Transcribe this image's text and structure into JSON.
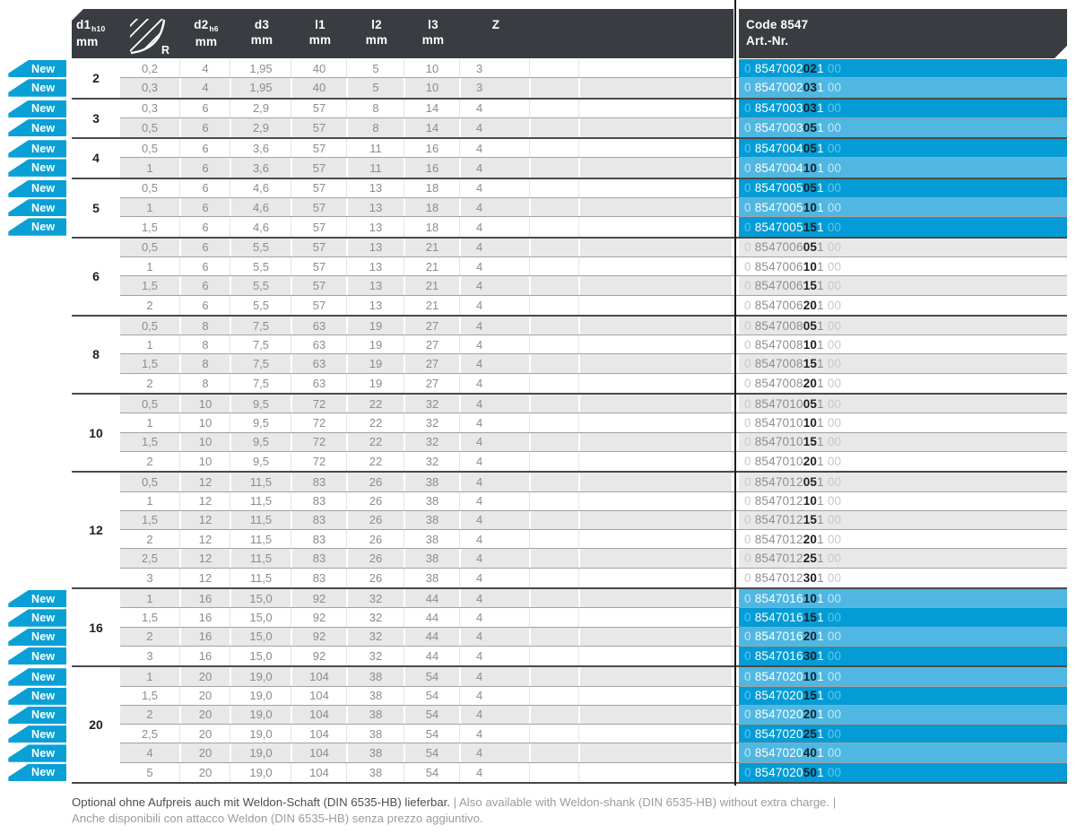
{
  "table": {
    "badge_label": "New",
    "header": {
      "columns": [
        {
          "id": "d1",
          "label": "d1",
          "sub": "h10",
          "unit": "mm"
        },
        {
          "id": "r",
          "label": "R",
          "icon": "corner-radius-icon"
        },
        {
          "id": "d2",
          "label": "d2",
          "sub": "h6",
          "unit": "mm"
        },
        {
          "id": "d3",
          "label": "d3",
          "unit": "mm"
        },
        {
          "id": "l1",
          "label": "l1",
          "unit": "mm"
        },
        {
          "id": "l2",
          "label": "l2",
          "unit": "mm"
        },
        {
          "id": "l3",
          "label": "l3",
          "unit": "mm"
        },
        {
          "id": "z",
          "label": "Z"
        }
      ],
      "code_title": "Code 8547",
      "code_subtitle": "Art.-Nr."
    },
    "groups": [
      {
        "d1": "2",
        "new": true,
        "rows": [
          {
            "r": "0,2",
            "d2": "4",
            "d3": "1,95",
            "l1": "40",
            "l2": "5",
            "l3": "10",
            "z": "3",
            "code": [
              "0",
              "8547002",
              "02",
              "1",
              "00"
            ]
          },
          {
            "r": "0,3",
            "d2": "4",
            "d3": "1,95",
            "l1": "40",
            "l2": "5",
            "l3": "10",
            "z": "3",
            "code": [
              "0",
              "8547002",
              "03",
              "1",
              "00"
            ]
          }
        ]
      },
      {
        "d1": "3",
        "new": true,
        "rows": [
          {
            "r": "0,3",
            "d2": "6",
            "d3": "2,9",
            "l1": "57",
            "l2": "8",
            "l3": "14",
            "z": "4",
            "code": [
              "0",
              "8547003",
              "03",
              "1",
              "00"
            ]
          },
          {
            "r": "0,5",
            "d2": "6",
            "d3": "2,9",
            "l1": "57",
            "l2": "8",
            "l3": "14",
            "z": "4",
            "code": [
              "0",
              "8547003",
              "05",
              "1",
              "00"
            ]
          }
        ]
      },
      {
        "d1": "4",
        "new": true,
        "rows": [
          {
            "r": "0,5",
            "d2": "6",
            "d3": "3,6",
            "l1": "57",
            "l2": "11",
            "l3": "16",
            "z": "4",
            "code": [
              "0",
              "8547004",
              "05",
              "1",
              "00"
            ]
          },
          {
            "r": "1",
            "d2": "6",
            "d3": "3,6",
            "l1": "57",
            "l2": "11",
            "l3": "16",
            "z": "4",
            "code": [
              "0",
              "8547004",
              "10",
              "1",
              "00"
            ]
          }
        ]
      },
      {
        "d1": "5",
        "new": true,
        "rows": [
          {
            "r": "0,5",
            "d2": "6",
            "d3": "4,6",
            "l1": "57",
            "l2": "13",
            "l3": "18",
            "z": "4",
            "code": [
              "0",
              "8547005",
              "05",
              "1",
              "00"
            ]
          },
          {
            "r": "1",
            "d2": "6",
            "d3": "4,6",
            "l1": "57",
            "l2": "13",
            "l3": "18",
            "z": "4",
            "code": [
              "0",
              "8547005",
              "10",
              "1",
              "00"
            ]
          },
          {
            "r": "1,5",
            "d2": "6",
            "d3": "4,6",
            "l1": "57",
            "l2": "13",
            "l3": "18",
            "z": "4",
            "code": [
              "0",
              "8547005",
              "15",
              "1",
              "00"
            ]
          }
        ]
      },
      {
        "d1": "6",
        "new": false,
        "rows": [
          {
            "r": "0,5",
            "d2": "6",
            "d3": "5,5",
            "l1": "57",
            "l2": "13",
            "l3": "21",
            "z": "4",
            "code": [
              "0",
              "8547006",
              "05",
              "1",
              "00"
            ]
          },
          {
            "r": "1",
            "d2": "6",
            "d3": "5,5",
            "l1": "57",
            "l2": "13",
            "l3": "21",
            "z": "4",
            "code": [
              "0",
              "8547006",
              "10",
              "1",
              "00"
            ]
          },
          {
            "r": "1,5",
            "d2": "6",
            "d3": "5,5",
            "l1": "57",
            "l2": "13",
            "l3": "21",
            "z": "4",
            "code": [
              "0",
              "8547006",
              "15",
              "1",
              "00"
            ]
          },
          {
            "r": "2",
            "d2": "6",
            "d3": "5,5",
            "l1": "57",
            "l2": "13",
            "l3": "21",
            "z": "4",
            "code": [
              "0",
              "8547006",
              "20",
              "1",
              "00"
            ]
          }
        ]
      },
      {
        "d1": "8",
        "new": false,
        "rows": [
          {
            "r": "0,5",
            "d2": "8",
            "d3": "7,5",
            "l1": "63",
            "l2": "19",
            "l3": "27",
            "z": "4",
            "code": [
              "0",
              "8547008",
              "05",
              "1",
              "00"
            ]
          },
          {
            "r": "1",
            "d2": "8",
            "d3": "7,5",
            "l1": "63",
            "l2": "19",
            "l3": "27",
            "z": "4",
            "code": [
              "0",
              "8547008",
              "10",
              "1",
              "00"
            ]
          },
          {
            "r": "1,5",
            "d2": "8",
            "d3": "7,5",
            "l1": "63",
            "l2": "19",
            "l3": "27",
            "z": "4",
            "code": [
              "0",
              "8547008",
              "15",
              "1",
              "00"
            ]
          },
          {
            "r": "2",
            "d2": "8",
            "d3": "7,5",
            "l1": "63",
            "l2": "19",
            "l3": "27",
            "z": "4",
            "code": [
              "0",
              "8547008",
              "20",
              "1",
              "00"
            ]
          }
        ]
      },
      {
        "d1": "10",
        "new": false,
        "rows": [
          {
            "r": "0,5",
            "d2": "10",
            "d3": "9,5",
            "l1": "72",
            "l2": "22",
            "l3": "32",
            "z": "4",
            "code": [
              "0",
              "8547010",
              "05",
              "1",
              "00"
            ]
          },
          {
            "r": "1",
            "d2": "10",
            "d3": "9,5",
            "l1": "72",
            "l2": "22",
            "l3": "32",
            "z": "4",
            "code": [
              "0",
              "8547010",
              "10",
              "1",
              "00"
            ]
          },
          {
            "r": "1,5",
            "d2": "10",
            "d3": "9,5",
            "l1": "72",
            "l2": "22",
            "l3": "32",
            "z": "4",
            "code": [
              "0",
              "8547010",
              "15",
              "1",
              "00"
            ]
          },
          {
            "r": "2",
            "d2": "10",
            "d3": "9,5",
            "l1": "72",
            "l2": "22",
            "l3": "32",
            "z": "4",
            "code": [
              "0",
              "8547010",
              "20",
              "1",
              "00"
            ]
          }
        ]
      },
      {
        "d1": "12",
        "new": false,
        "rows": [
          {
            "r": "0,5",
            "d2": "12",
            "d3": "11,5",
            "l1": "83",
            "l2": "26",
            "l3": "38",
            "z": "4",
            "code": [
              "0",
              "8547012",
              "05",
              "1",
              "00"
            ]
          },
          {
            "r": "1",
            "d2": "12",
            "d3": "11,5",
            "l1": "83",
            "l2": "26",
            "l3": "38",
            "z": "4",
            "code": [
              "0",
              "8547012",
              "10",
              "1",
              "00"
            ]
          },
          {
            "r": "1,5",
            "d2": "12",
            "d3": "11,5",
            "l1": "83",
            "l2": "26",
            "l3": "38",
            "z": "4",
            "code": [
              "0",
              "8547012",
              "15",
              "1",
              "00"
            ]
          },
          {
            "r": "2",
            "d2": "12",
            "d3": "11,5",
            "l1": "83",
            "l2": "26",
            "l3": "38",
            "z": "4",
            "code": [
              "0",
              "8547012",
              "20",
              "1",
              "00"
            ]
          },
          {
            "r": "2,5",
            "d2": "12",
            "d3": "11,5",
            "l1": "83",
            "l2": "26",
            "l3": "38",
            "z": "4",
            "code": [
              "0",
              "8547012",
              "25",
              "1",
              "00"
            ]
          },
          {
            "r": "3",
            "d2": "12",
            "d3": "11,5",
            "l1": "83",
            "l2": "26",
            "l3": "38",
            "z": "4",
            "code": [
              "0",
              "8547012",
              "30",
              "1",
              "00"
            ]
          }
        ]
      },
      {
        "d1": "16",
        "new": true,
        "rows": [
          {
            "r": "1",
            "d2": "16",
            "d3": "15,0",
            "l1": "92",
            "l2": "32",
            "l3": "44",
            "z": "4",
            "code": [
              "0",
              "8547016",
              "10",
              "1",
              "00"
            ]
          },
          {
            "r": "1,5",
            "d2": "16",
            "d3": "15,0",
            "l1": "92",
            "l2": "32",
            "l3": "44",
            "z": "4",
            "code": [
              "0",
              "8547016",
              "15",
              "1",
              "00"
            ]
          },
          {
            "r": "2",
            "d2": "16",
            "d3": "15,0",
            "l1": "92",
            "l2": "32",
            "l3": "44",
            "z": "4",
            "code": [
              "0",
              "8547016",
              "20",
              "1",
              "00"
            ]
          },
          {
            "r": "3",
            "d2": "16",
            "d3": "15,0",
            "l1": "92",
            "l2": "32",
            "l3": "44",
            "z": "4",
            "code": [
              "0",
              "8547016",
              "30",
              "1",
              "00"
            ]
          }
        ]
      },
      {
        "d1": "20",
        "new": true,
        "rows": [
          {
            "r": "1",
            "d2": "20",
            "d3": "19,0",
            "l1": "104",
            "l2": "38",
            "l3": "54",
            "z": "4",
            "code": [
              "0",
              "8547020",
              "10",
              "1",
              "00"
            ]
          },
          {
            "r": "1,5",
            "d2": "20",
            "d3": "19,0",
            "l1": "104",
            "l2": "38",
            "l3": "54",
            "z": "4",
            "code": [
              "0",
              "8547020",
              "15",
              "1",
              "00"
            ]
          },
          {
            "r": "2",
            "d2": "20",
            "d3": "19,0",
            "l1": "104",
            "l2": "38",
            "l3": "54",
            "z": "4",
            "code": [
              "0",
              "8547020",
              "20",
              "1",
              "00"
            ]
          },
          {
            "r": "2,5",
            "d2": "20",
            "d3": "19,0",
            "l1": "104",
            "l2": "38",
            "l3": "54",
            "z": "4",
            "code": [
              "0",
              "8547020",
              "25",
              "1",
              "00"
            ]
          },
          {
            "r": "4",
            "d2": "20",
            "d3": "19,0",
            "l1": "104",
            "l2": "38",
            "l3": "54",
            "z": "4",
            "code": [
              "0",
              "8547020",
              "40",
              "1",
              "00"
            ]
          },
          {
            "r": "5",
            "d2": "20",
            "d3": "19,0",
            "l1": "104",
            "l2": "38",
            "l3": "54",
            "z": "4",
            "code": [
              "0",
              "8547020",
              "50",
              "1",
              "00"
            ]
          }
        ]
      }
    ]
  },
  "footnote": {
    "de": "Optional ohne Aufpreis auch mit Weldon-Schaft (DIN 6535-HB) lieferbar.",
    "separator": "|",
    "en": "Also available with Weldon-shank (DIN 6535-HB) without extra charge.",
    "it": "Anche disponibili con attacco Weldon (DIN 6535-HB) senza prezzo aggiuntivo."
  },
  "colors": {
    "header_bg": "#393d41",
    "stripe_gray": "#e8e8e8",
    "code_row_dark_cyan": "#049cd6",
    "code_row_light_cyan": "#4fb7e2",
    "badge_cyan": "#0aa0d6",
    "group_separator": "#4a4a4a"
  }
}
